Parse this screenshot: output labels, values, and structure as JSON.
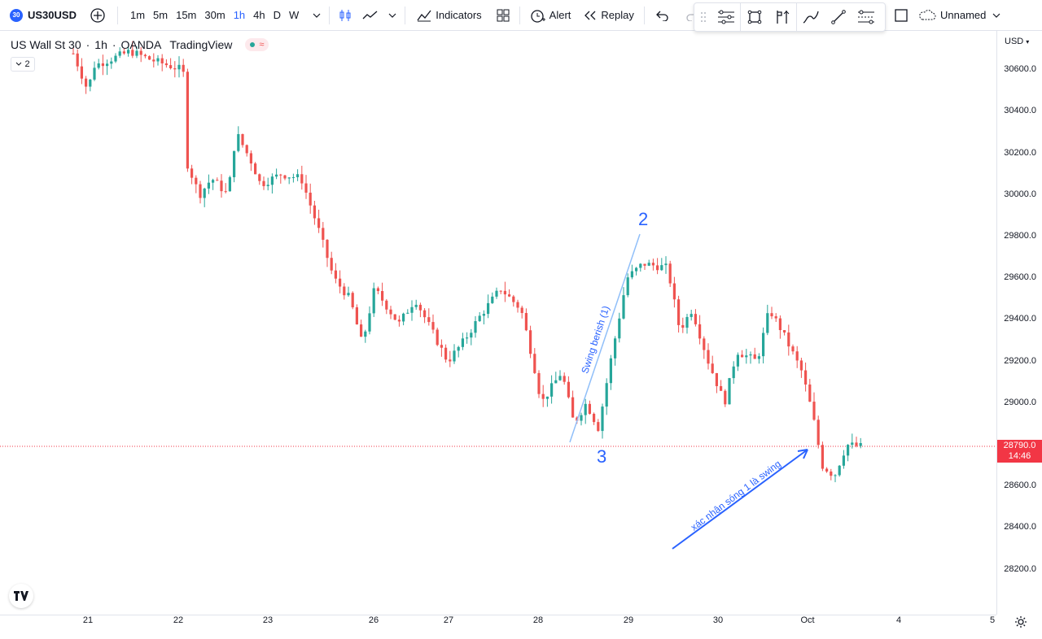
{
  "toolbar": {
    "symbol_badge": "30",
    "symbol": "US30USD",
    "timeframes": [
      "1m",
      "5m",
      "15m",
      "30m",
      "1h",
      "4h",
      "D",
      "W"
    ],
    "active_timeframe": "1h",
    "indicators_label": "Indicators",
    "alert_label": "Alert",
    "replay_label": "Replay",
    "layout_name": "Unnamed"
  },
  "legend": {
    "symbol_name": "US Wall St 30",
    "interval": "1h",
    "broker": "OANDA",
    "source": "TradingView",
    "indicator_count": "2"
  },
  "price_axis": {
    "currency": "USD",
    "ticks": [
      "30600.0",
      "30400.0",
      "30200.0",
      "30000.0",
      "29800.0",
      "29600.0",
      "29400.0",
      "29200.0",
      "29000.0",
      "28800.0",
      "28600.0",
      "28400.0",
      "28200.0"
    ],
    "current_price": "28790.0",
    "countdown": "14:46"
  },
  "time_axis": {
    "ticks": [
      "21",
      "22",
      "23",
      "26",
      "27",
      "28",
      "29",
      "30",
      "Oct",
      "4",
      "5"
    ]
  },
  "annotations": {
    "wave_2": "2",
    "wave_3": "3",
    "trend_label": "Swing berish  (1)",
    "arrow_label": "xác nhận sóng 1 là swing"
  },
  "colors": {
    "up": "#26a69a",
    "down": "#ef5350",
    "accent": "#2962ff",
    "price_tag": "#f23645"
  },
  "chart_data": {
    "type": "candlestick",
    "symbol": "US30USD",
    "interval": "1h",
    "y_range": [
      28100,
      30700
    ],
    "current_price": 28790.0,
    "overview": [
      {
        "date": "21",
        "open": 30700,
        "high": 30700,
        "low": 30450,
        "close": 30520
      },
      {
        "date": "22",
        "open": 30650,
        "high": 30700,
        "low": 29980,
        "close": 30050
      },
      {
        "date": "23",
        "open": 30300,
        "high": 30400,
        "low": 29950,
        "close": 30080
      },
      {
        "date": "26",
        "open": 29950,
        "high": 30050,
        "low": 29200,
        "close": 29450
      },
      {
        "date": "27",
        "open": 29500,
        "high": 29650,
        "low": 29120,
        "close": 29520
      },
      {
        "date": "28",
        "open": 29300,
        "high": 29450,
        "low": 28920,
        "close": 28950
      },
      {
        "date": "29",
        "open": 28900,
        "high": 29700,
        "low": 28810,
        "close": 29650
      },
      {
        "date": "30",
        "open": 29600,
        "high": 29650,
        "low": 28980,
        "close": 29420
      },
      {
        "date": "Oct",
        "open": 29450,
        "high": 29480,
        "low": 28570,
        "close": 28790
      }
    ]
  }
}
